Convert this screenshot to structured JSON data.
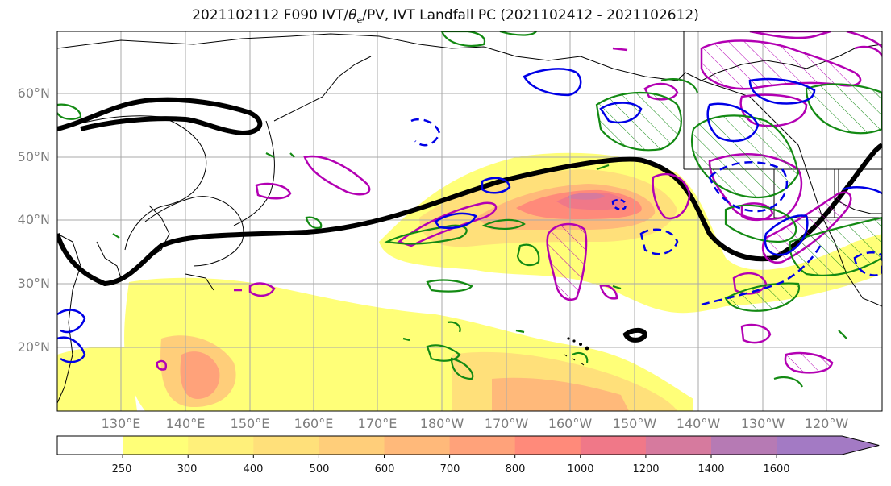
{
  "title": {
    "prefix": "2021102112 F090 IVT/",
    "theta": "θ",
    "theta_sub": "e",
    "suffix": "/PV, IVT Landfall PC (2021102412 - 2021102612)"
  },
  "map": {
    "lat_labels": [
      "60°N",
      "50°N",
      "40°N",
      "30°N",
      "20°N"
    ],
    "lon_labels": [
      "130°E",
      "140°E",
      "150°E",
      "160°E",
      "170°E",
      "180°W",
      "170°W",
      "160°W",
      "150°W",
      "140°W",
      "130°W",
      "120°W"
    ],
    "grid": true,
    "colors": {
      "ivt_positive_contour": "#b300b3",
      "ivt_negative_contour": "#0000e6",
      "pv_contour": "#138a13",
      "jet_contour": "#000000"
    }
  },
  "colorbar": {
    "levels": [
      "250",
      "300",
      "400",
      "500",
      "600",
      "700",
      "800",
      "1000",
      "1200",
      "1400",
      "1600"
    ],
    "colors": [
      "#ffffff",
      "#ffff78",
      "#fff07a",
      "#ffe07a",
      "#ffce7a",
      "#ffb97a",
      "#ffa27a",
      "#ff8a7a",
      "#f07888",
      "#d67a9e",
      "#b67ab4",
      "#a37ac4"
    ],
    "extend": "max"
  }
}
